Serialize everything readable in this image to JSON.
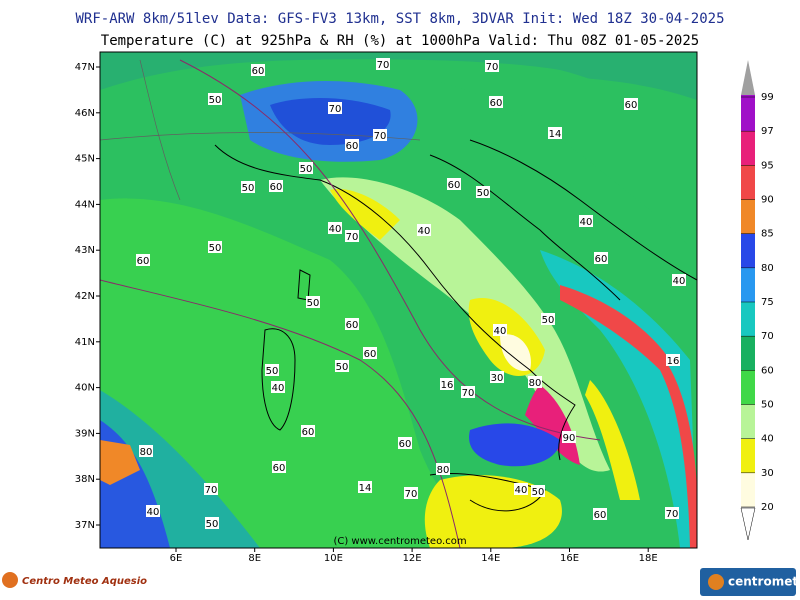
{
  "header": {
    "line1": "WRF-ARW 8km/51lev  Data: GFS-FV3 13km, SST 8km, 3DVAR  Init: Wed 18Z 30-04-2025",
    "line2": "Temperature (C) at 925hPa & RH (%) at 1000hPa  Valid: Thu 08Z 01-05-2025"
  },
  "map": {
    "lat_labels": [
      "47N",
      "46N",
      "45N",
      "44N",
      "43N",
      "42N",
      "41N",
      "40N",
      "39N",
      "38N",
      "37N"
    ],
    "lon_labels": [
      "6E",
      "8E",
      "10E",
      "12E",
      "14E",
      "16E",
      "18E"
    ],
    "copyright": "(C) www.centrometeo.com",
    "contour_labels": [
      60,
      70,
      50,
      60,
      70,
      70,
      70,
      60,
      60,
      14,
      50,
      60,
      50,
      60,
      40,
      50,
      60,
      40,
      70,
      60,
      50,
      40,
      50,
      60,
      40,
      60,
      50,
      30,
      80,
      40,
      90,
      16,
      70,
      16,
      40,
      50,
      60,
      60,
      80,
      70,
      14,
      70,
      40,
      50,
      80,
      60,
      50,
      40,
      60,
      70,
      50,
      60
    ]
  },
  "colorbar": {
    "levels": [
      99,
      97,
      95,
      90,
      85,
      80,
      75,
      70,
      60,
      50,
      40,
      30,
      20
    ],
    "colors": [
      "#a010c8",
      "#e8207a",
      "#f04848",
      "#f08828",
      "#2848e8",
      "#2898f0",
      "#18c8c0",
      "#18b060",
      "#40d848",
      "#b8f498",
      "#f0f010",
      "#fffce0"
    ]
  },
  "footer": {
    "left": "Centro Meteo Aquesio",
    "right": "centrometeo"
  }
}
